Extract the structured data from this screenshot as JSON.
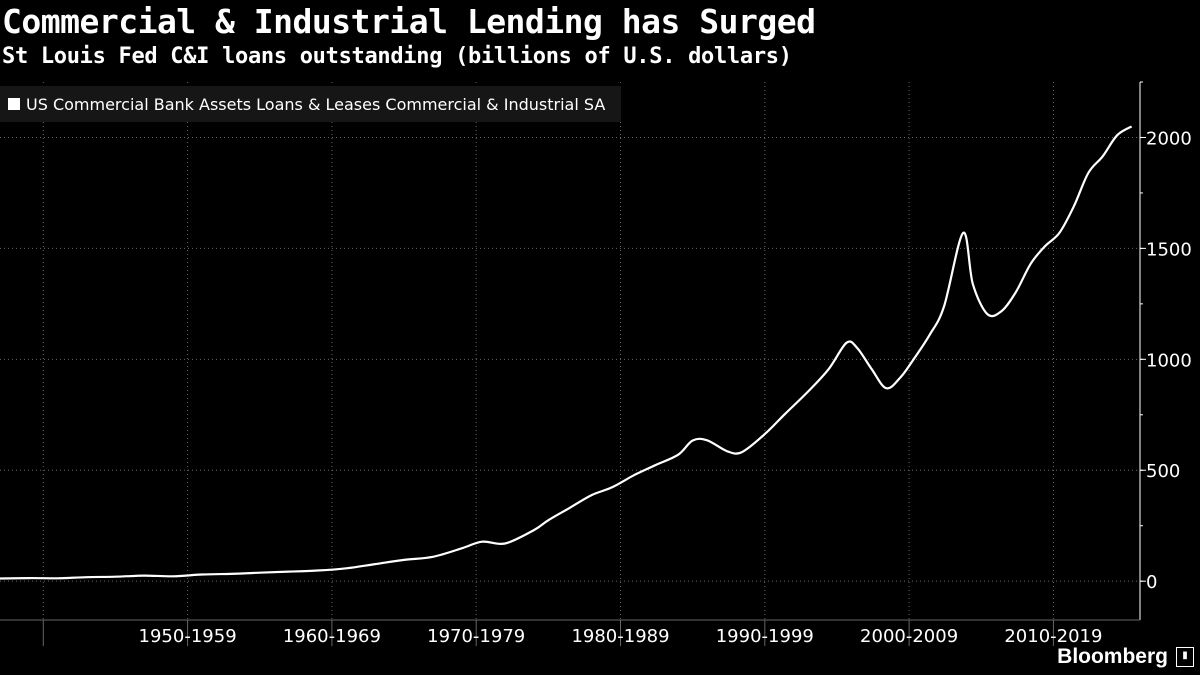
{
  "title": "Commercial & Industrial Lending has Surged",
  "subtitle": "St Louis Fed C&I loans outstanding (billions of U.S. dollars)",
  "brand": "Bloomberg",
  "brand_icon": "bloomberg-chart-icon",
  "colors": {
    "background": "#000000",
    "line": "#ffffff",
    "grid": "#666666"
  },
  "chart_data": {
    "type": "line",
    "title": "Commercial & Industrial Lending has Surged",
    "subtitle": "St Louis Fed C&I loans outstanding (billions of U.S. dollars)",
    "xlabel": "",
    "ylabel": "",
    "x_axis_type": "date",
    "xlim": [
      "1942-01",
      "2021-01"
    ],
    "ylim": [
      -175,
      2250
    ],
    "y_ticks": [
      0,
      500,
      1000,
      1500,
      2000
    ],
    "x_tick_labels": [
      "1950-1959",
      "1960-1969",
      "1970-1979",
      "1980-1989",
      "1990-1999",
      "2000-2009",
      "2010-2019"
    ],
    "grid": "dotted",
    "legend_position": "top-left",
    "series": [
      {
        "name": "US Commercial Bank Assets Loans & Leases Commercial & Industrial SA",
        "x": [
          "1942-01",
          "1944-01",
          "1946-01",
          "1948-01",
          "1950-01",
          "1952-01",
          "1954-01",
          "1956-01",
          "1958-01",
          "1960-01",
          "1962-01",
          "1964-01",
          "1966-01",
          "1968-01",
          "1970-01",
          "1972-01",
          "1974-01",
          "1975-06",
          "1977-01",
          "1979-01",
          "1980-01",
          "1981-06",
          "1983-01",
          "1984-06",
          "1986-01",
          "1987-06",
          "1989-01",
          "1990-01",
          "1991-01",
          "1992-06",
          "1993-06",
          "1995-01",
          "1996-06",
          "1998-01",
          "1999-06",
          "2000-09",
          "2001-06",
          "2002-06",
          "2003-06",
          "2004-06",
          "2005-06",
          "2006-06",
          "2007-06",
          "2008-10",
          "2009-06",
          "2010-06",
          "2011-06",
          "2012-06",
          "2013-06",
          "2014-06",
          "2015-06",
          "2016-06",
          "2017-06",
          "2018-06",
          "2019-06",
          "2020-06"
        ],
        "y": [
          12,
          14,
          13,
          18,
          20,
          25,
          22,
          30,
          33,
          38,
          43,
          48,
          58,
          77,
          96,
          110,
          148,
          178,
          170,
          230,
          275,
          328,
          388,
          423,
          480,
          523,
          570,
          634,
          635,
          585,
          582,
          663,
          755,
          855,
          955,
          1075,
          1050,
          955,
          870,
          920,
          1010,
          1110,
          1238,
          1570,
          1340,
          1204,
          1218,
          1305,
          1430,
          1510,
          1570,
          1690,
          1840,
          1915,
          2010,
          2050
        ]
      }
    ]
  }
}
